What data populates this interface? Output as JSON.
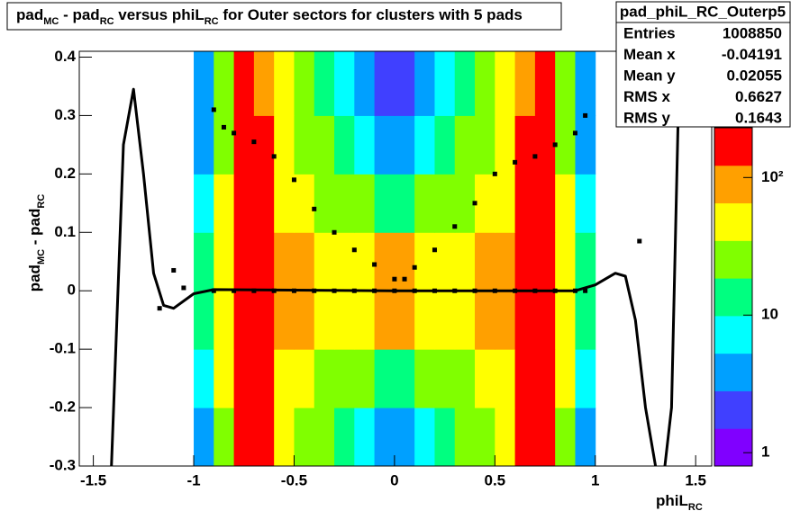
{
  "chart_data": {
    "type": "heatmap",
    "title": [
      "pad",
      "MC",
      " - pad",
      "RC",
      " versus phiL",
      "RC",
      " for Outer sectors for clusters with 5 pads"
    ],
    "x_label": [
      "phiL",
      "RC"
    ],
    "y_label": [
      "pad",
      "MC",
      " - pad",
      "RC"
    ],
    "xlim": [
      -1.57,
      1.58
    ],
    "ylim": [
      -0.3,
      0.41
    ],
    "xticks": [
      -1.5,
      -1,
      -0.5,
      0,
      0.5,
      1,
      1.5
    ],
    "yticks": [
      -0.3,
      -0.2,
      -0.1,
      0,
      0.1,
      0.2,
      0.3,
      0.4
    ],
    "zlim": [
      0.8,
      230
    ],
    "zscale": "log",
    "zticks": [
      1,
      10,
      {
        "value": 100,
        "label": "10²"
      }
    ],
    "palette": [
      "#8000ff",
      "#4040ff",
      "#00a0ff",
      "#00ffff",
      "#00ff80",
      "#80ff00",
      "#ffff00",
      "#ffa000",
      "#ff0000"
    ],
    "x_bins": [
      -1.0,
      -0.9,
      -0.8,
      -0.7,
      -0.6,
      -0.5,
      -0.4,
      -0.3,
      -0.2,
      -0.1,
      0,
      0.1,
      0.2,
      0.3,
      0.4,
      0.5,
      0.6,
      0.7,
      0.8,
      0.9,
      1.0
    ],
    "y_bins": [
      -0.3,
      -0.2,
      -0.1,
      0,
      0.1,
      0.2,
      0.3,
      0.41
    ],
    "z": [
      [
        5,
        30,
        150,
        140,
        50,
        30,
        20,
        12,
        8,
        4,
        4,
        8,
        12,
        20,
        30,
        50,
        140,
        150,
        30,
        5
      ],
      [
        8,
        40,
        170,
        160,
        60,
        40,
        30,
        25,
        20,
        15,
        15,
        20,
        25,
        30,
        40,
        60,
        160,
        170,
        40,
        8
      ],
      [
        15,
        60,
        200,
        180,
        90,
        70,
        60,
        55,
        60,
        70,
        70,
        60,
        55,
        60,
        70,
        90,
        180,
        200,
        60,
        15
      ],
      [
        15,
        60,
        200,
        180,
        90,
        70,
        60,
        55,
        60,
        70,
        70,
        60,
        55,
        60,
        70,
        90,
        180,
        200,
        60,
        15
      ],
      [
        8,
        40,
        170,
        160,
        60,
        40,
        30,
        25,
        20,
        15,
        15,
        20,
        25,
        30,
        40,
        60,
        160,
        170,
        40,
        8
      ],
      [
        5,
        30,
        150,
        140,
        50,
        30,
        20,
        12,
        8,
        4,
        4,
        8,
        12,
        20,
        30,
        50,
        140,
        150,
        30,
        5
      ],
      [
        3,
        25,
        130,
        120,
        45,
        25,
        15,
        8,
        4,
        2,
        2,
        4,
        8,
        15,
        25,
        45,
        120,
        130,
        25,
        3
      ]
    ],
    "profile": {
      "x": [
        -1.17,
        -1.1,
        -1.05,
        -0.9,
        -0.85,
        -0.8,
        -0.7,
        -0.6,
        -0.5,
        -0.4,
        -0.3,
        -0.2,
        -0.1,
        0,
        0.05,
        0.1,
        0.2,
        0.3,
        0.4,
        0.5,
        0.6,
        0.7,
        0.8,
        0.9,
        0.95,
        1.22
      ],
      "y": [
        -0.03,
        0.035,
        0.005,
        0.31,
        0.28,
        0.27,
        0.255,
        0.23,
        0.19,
        0.14,
        0.1,
        0.07,
        0.045,
        0.02,
        0.02,
        0.04,
        0.07,
        0.11,
        0.15,
        0.2,
        0.22,
        0.23,
        0.25,
        0.27,
        0.3,
        0.085
      ]
    },
    "profile_zero": {
      "x": [
        -0.9,
        -0.8,
        -0.7,
        -0.6,
        -0.5,
        -0.4,
        -0.3,
        -0.2,
        -0.1,
        0,
        0.1,
        0.2,
        0.3,
        0.4,
        0.5,
        0.6,
        0.7,
        0.8,
        0.9,
        0.95
      ],
      "y": [
        0,
        0,
        0,
        0,
        0,
        0,
        0,
        0,
        0,
        0,
        0,
        0,
        0,
        0,
        0,
        0,
        0,
        0,
        0,
        0
      ]
    },
    "fit": {
      "x": [
        -1.41,
        -1.35,
        -1.3,
        -1.25,
        -1.2,
        -1.15,
        -1.1,
        -1.0,
        -0.9,
        0,
        0.9,
        1.0,
        1.1,
        1.15,
        1.2,
        1.25,
        1.3,
        1.33,
        1.38,
        1.42,
        1.44
      ],
      "y": [
        -0.3,
        0.25,
        0.345,
        0.2,
        0.03,
        -0.025,
        -0.03,
        -0.005,
        0.002,
        0,
        0,
        0.01,
        0.03,
        0.025,
        -0.05,
        -0.2,
        -0.3,
        -0.35,
        -0.2,
        0.4,
        0.5
      ]
    },
    "stats": {
      "name": "pad_phiL_RC_Outerp5",
      "rows": [
        [
          "Entries",
          "1008850"
        ],
        [
          "Mean x",
          "-0.04191"
        ],
        [
          "Mean y",
          "0.02055"
        ],
        [
          "RMS x",
          "0.6627"
        ],
        [
          "RMS y",
          "0.1643"
        ]
      ]
    }
  }
}
